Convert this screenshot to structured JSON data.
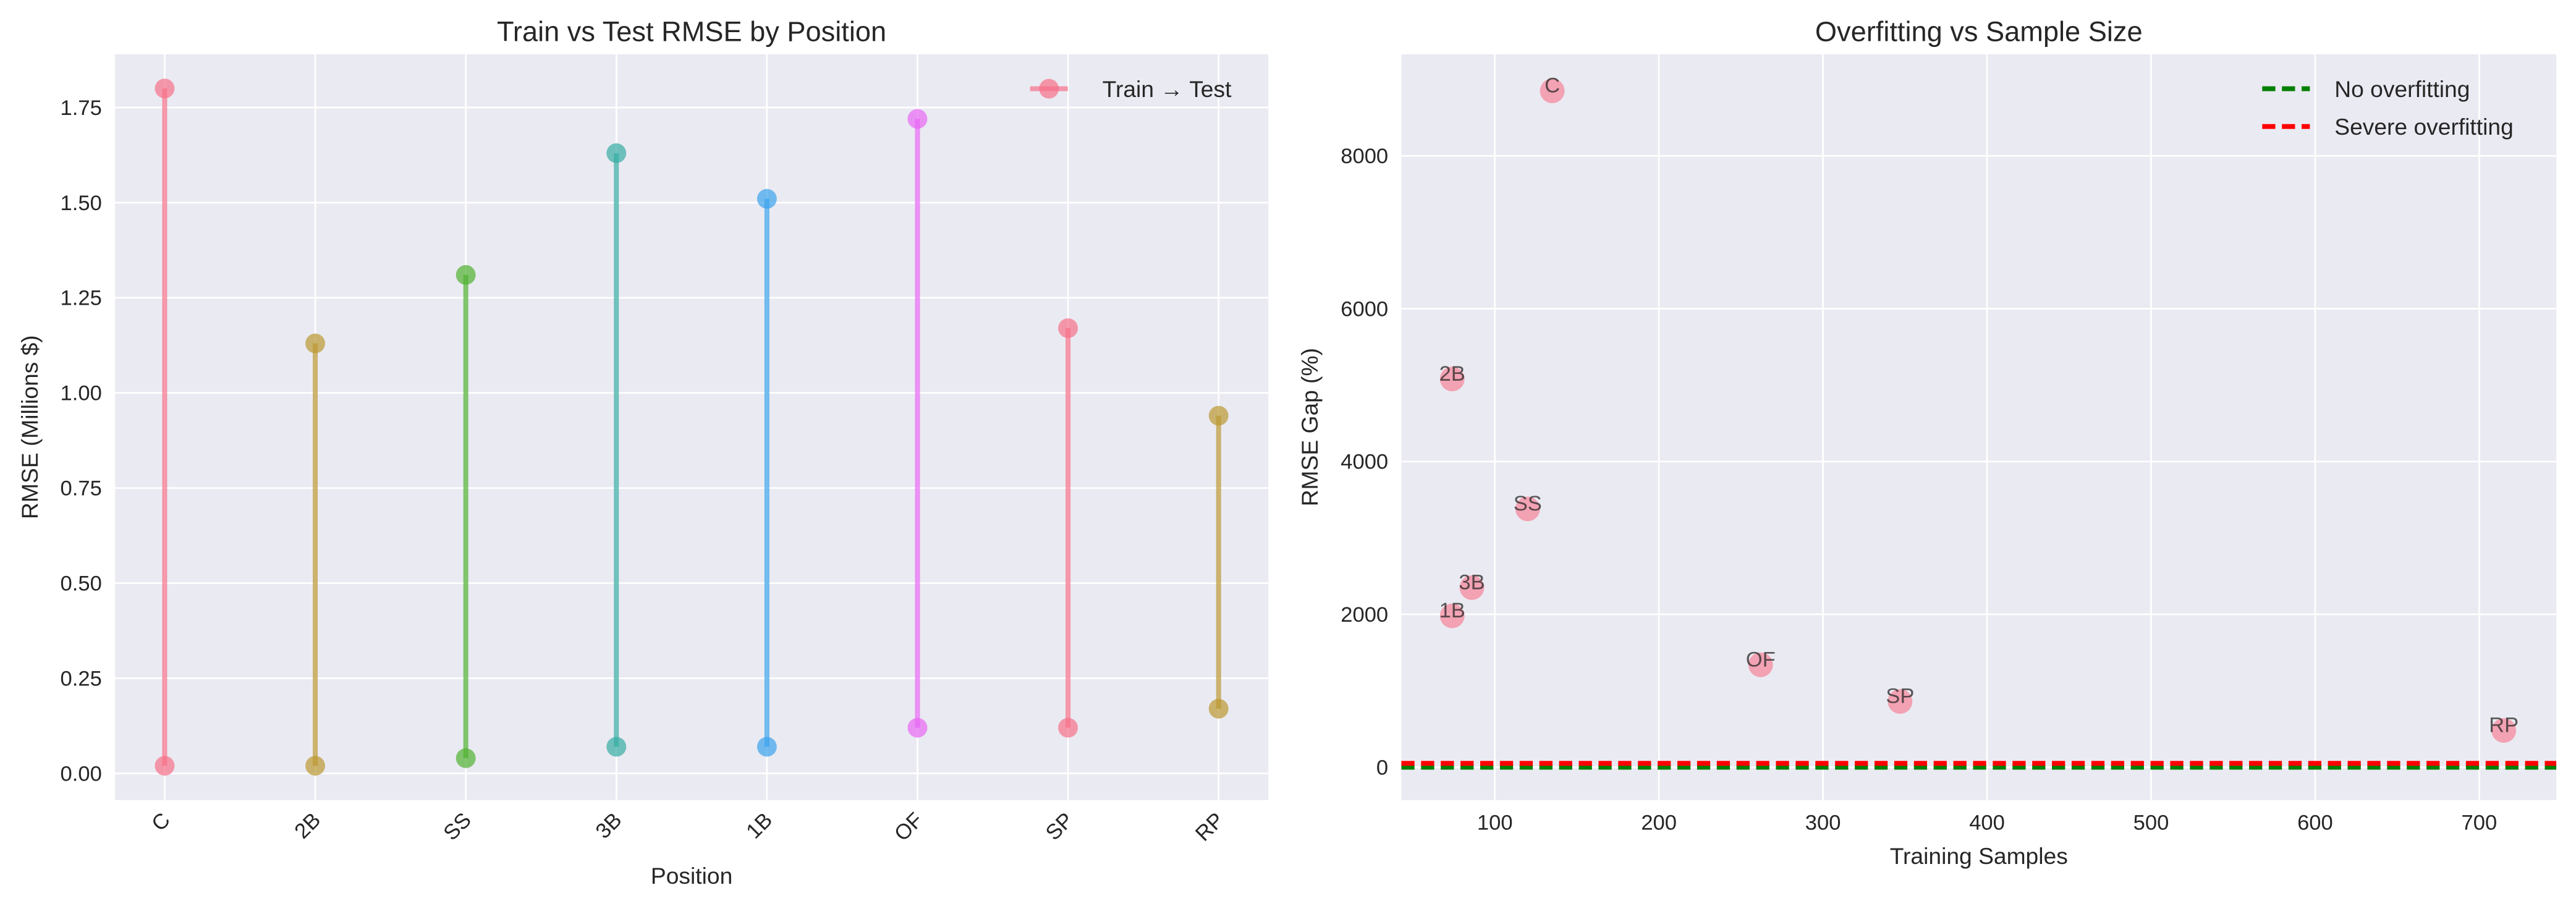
{
  "chart_data": [
    {
      "type": "line",
      "title": "Train vs Test RMSE by Position",
      "xlabel": "Position",
      "ylabel": "RMSE (Millions $)",
      "categories": [
        "C",
        "2B",
        "SS",
        "3B",
        "1B",
        "OF",
        "SP",
        "RP"
      ],
      "train_rmse": [
        0.02,
        0.02,
        0.04,
        0.07,
        0.07,
        0.12,
        0.12,
        0.17
      ],
      "test_rmse": [
        1.8,
        1.13,
        1.31,
        1.63,
        1.51,
        1.72,
        1.17,
        0.94
      ],
      "colors": [
        "#f77189",
        "#bb9832",
        "#50b131",
        "#36ada4",
        "#3ba3ec",
        "#e866f4",
        "#f77189",
        "#bb9832"
      ],
      "ylim": [
        -0.07,
        1.89
      ],
      "yticks": [
        "0.00",
        "0.25",
        "0.50",
        "0.75",
        "1.00",
        "1.25",
        "1.50",
        "1.75"
      ],
      "legend": {
        "entries": [
          "Train → Test"
        ],
        "placement": "top-right"
      },
      "grid": true
    },
    {
      "type": "scatter",
      "title": "Overfitting vs Sample Size",
      "xlabel": "Training Samples",
      "ylabel": "RMSE Gap (%)",
      "points": [
        {
          "label": "C",
          "x": 135,
          "y": 8850
        },
        {
          "label": "2B",
          "x": 74,
          "y": 5080
        },
        {
          "label": "SS",
          "x": 120,
          "y": 3380
        },
        {
          "label": "3B",
          "x": 86,
          "y": 2350
        },
        {
          "label": "1B",
          "x": 74,
          "y": 1980
        },
        {
          "label": "OF",
          "x": 262,
          "y": 1340
        },
        {
          "label": "SP",
          "x": 347,
          "y": 860
        },
        {
          "label": "RP",
          "x": 715,
          "y": 480
        }
      ],
      "point_color": "#f77189",
      "reference_lines": [
        {
          "name": "No overfitting",
          "y": 0,
          "color": "#008000",
          "style": "dashed"
        },
        {
          "name": "Severe overfitting",
          "y": 50,
          "color": "#ff0000",
          "style": "dashed"
        }
      ],
      "xlim": [
        43,
        747
      ],
      "ylim": [
        -430,
        9330
      ],
      "xticks": [
        "100",
        "200",
        "300",
        "400",
        "500",
        "600",
        "700"
      ],
      "yticks": [
        "0",
        "2000",
        "4000",
        "6000",
        "8000"
      ],
      "legend": {
        "placement": "top-right"
      },
      "grid": true
    }
  ]
}
